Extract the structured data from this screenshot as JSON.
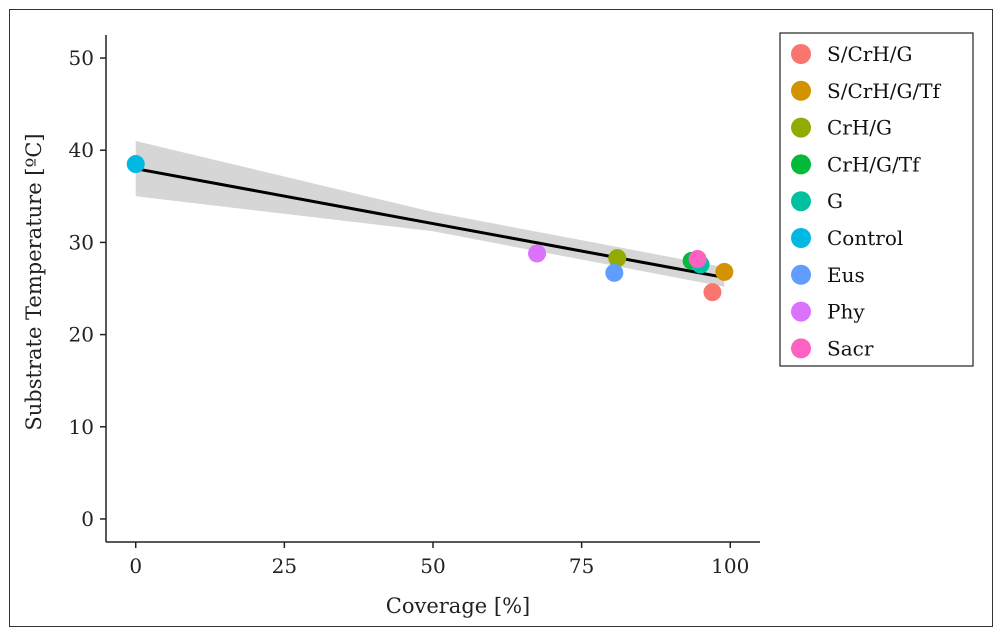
{
  "chart_data": {
    "type": "scatter",
    "xlabel": "Coverage [%]",
    "ylabel": "Substrate Temperature [ºC]",
    "xlim": [
      -5,
      105
    ],
    "ylim": [
      -2.5,
      52.5
    ],
    "xticks": [
      0,
      25,
      50,
      75,
      100
    ],
    "yticks": [
      0,
      10,
      20,
      30,
      40,
      50
    ],
    "grid": false,
    "legend_position": "right",
    "series": [
      {
        "name": "S/CrH/G",
        "color": "#F8766D",
        "points": [
          {
            "x": 97,
            "y": 24.6
          }
        ]
      },
      {
        "name": "S/CrH/G/Tf",
        "color": "#D39200",
        "points": [
          {
            "x": 99,
            "y": 26.8
          }
        ]
      },
      {
        "name": "CrH/G",
        "color": "#93AA00",
        "points": [
          {
            "x": 81,
            "y": 28.3
          }
        ]
      },
      {
        "name": "CrH/G/Tf",
        "color": "#00BA38",
        "points": [
          {
            "x": 93.5,
            "y": 28.0
          }
        ]
      },
      {
        "name": "G",
        "color": "#00C19F",
        "points": [
          {
            "x": 95,
            "y": 27.6
          }
        ]
      },
      {
        "name": "Control",
        "color": "#00B9E3",
        "points": [
          {
            "x": 0,
            "y": 38.5
          }
        ]
      },
      {
        "name": "Eus",
        "color": "#619CFF",
        "points": [
          {
            "x": 80.5,
            "y": 26.7
          }
        ]
      },
      {
        "name": "Phy",
        "color": "#DB72FB",
        "points": [
          {
            "x": 67.5,
            "y": 28.8
          }
        ]
      },
      {
        "name": "Sacr",
        "color": "#FF61C3",
        "points": [
          {
            "x": 94.5,
            "y": 28.2
          }
        ]
      }
    ],
    "trendline": {
      "type": "linear",
      "x": [
        0,
        99
      ],
      "y": [
        38.0,
        26.2
      ],
      "color": "#000000",
      "confidence_band": {
        "x": [
          0,
          50,
          99
        ],
        "lower": [
          35.0,
          31.2,
          25.2
        ],
        "upper": [
          41.0,
          33.3,
          27.3
        ],
        "color": "#cccccc"
      }
    }
  }
}
